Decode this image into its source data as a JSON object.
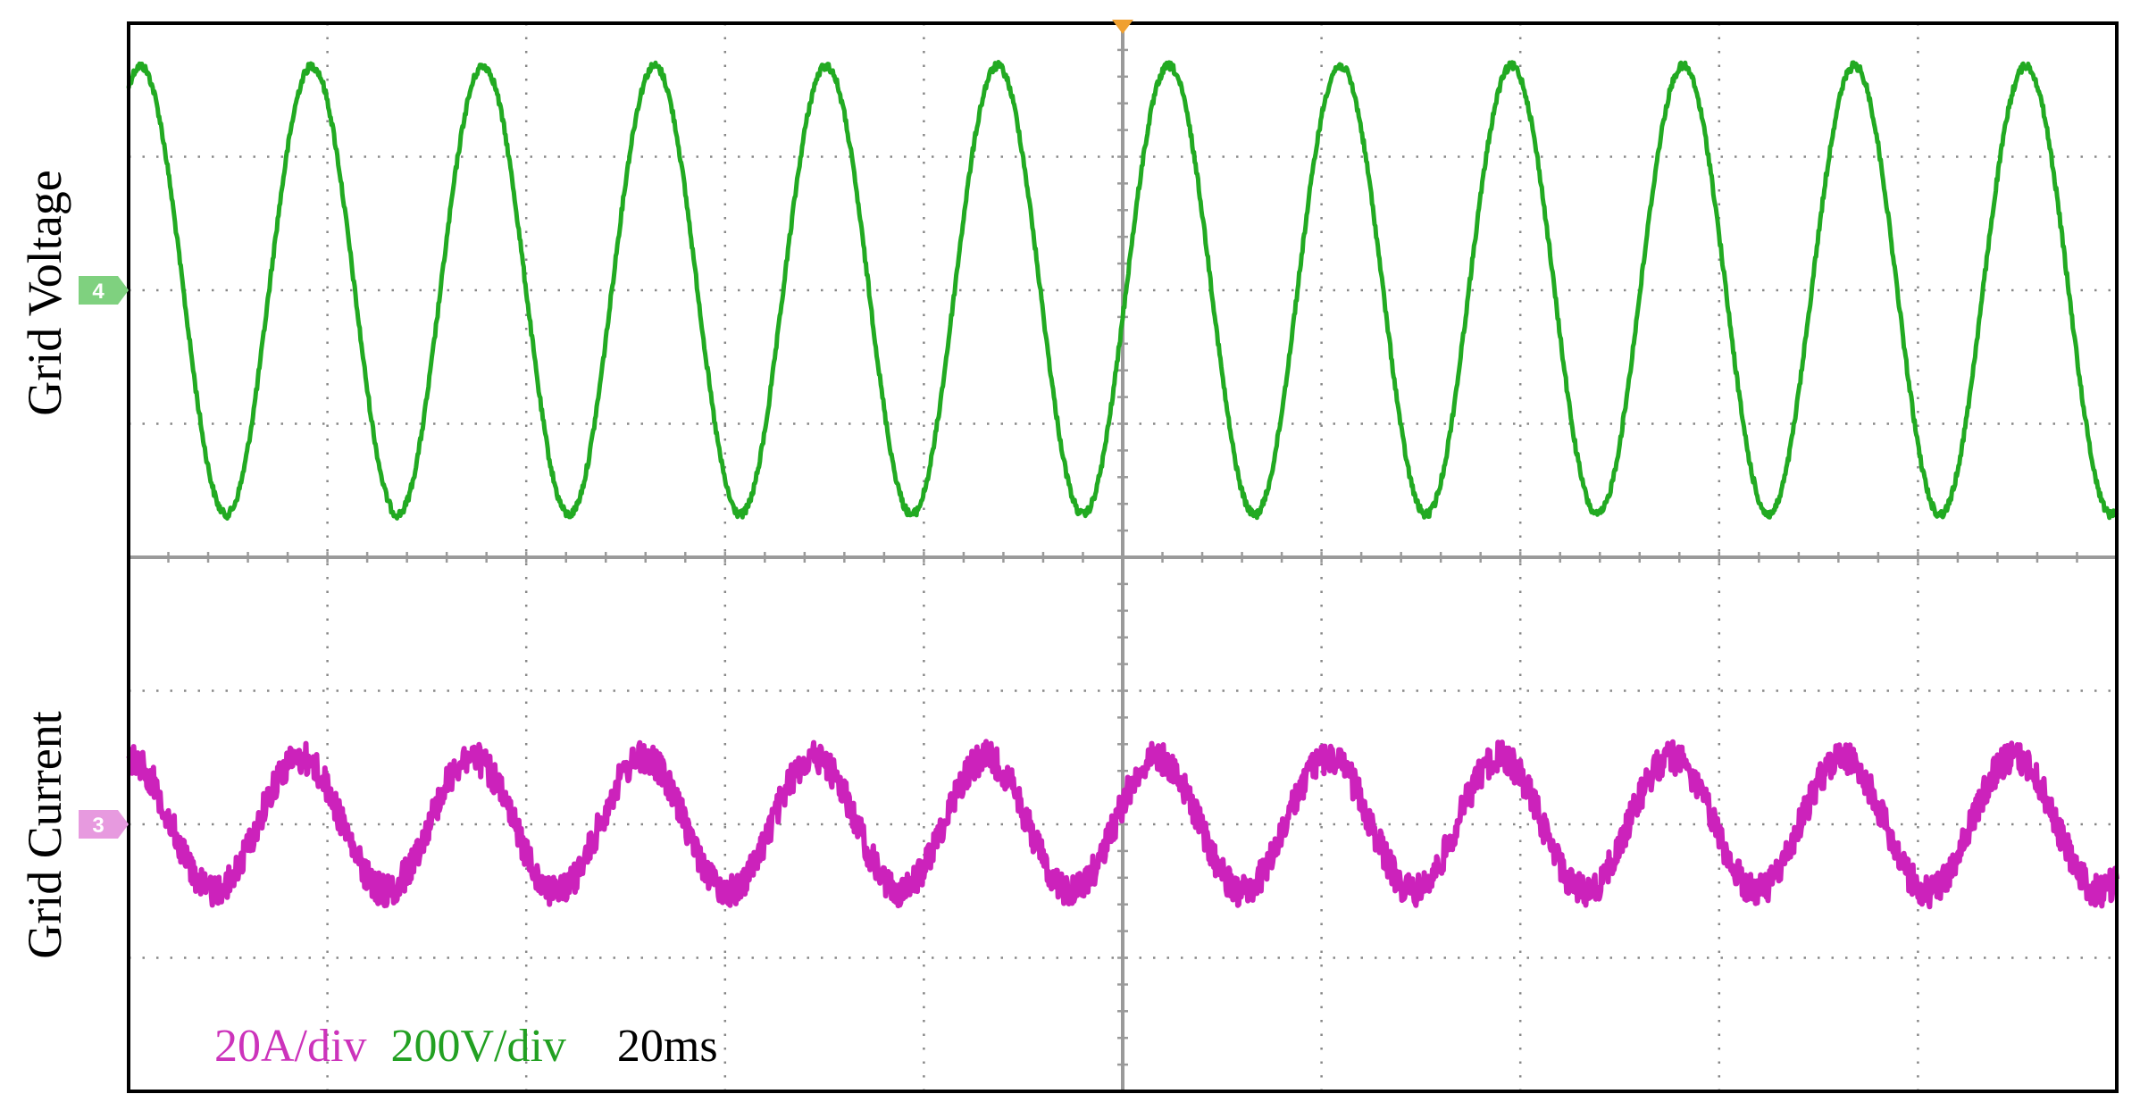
{
  "chart_data": {
    "type": "line",
    "grid": true,
    "x_divisions": 10,
    "y_divisions": 8,
    "panels": [
      {
        "ylabel": "Grid Voltage",
        "channel_marker": "4",
        "series": [
          {
            "name": "Grid Voltage",
            "color": "#22aa22",
            "periods_on_screen": 11.6,
            "peak_divisions": 1.68,
            "phase_deg": -25,
            "noise": 0.03
          }
        ]
      },
      {
        "ylabel": "Grid Current",
        "channel_marker": "3",
        "series": [
          {
            "name": "Grid Current",
            "color": "#cc22bb",
            "periods_on_screen": 11.6,
            "peak_divisions": 0.5,
            "phase_deg": 0,
            "noise": 0.12
          }
        ]
      }
    ],
    "scale": {
      "current": "20A/div",
      "voltage": "200V/div",
      "time": "20ms"
    },
    "colors": {
      "grid": "#888888",
      "frame": "#000000",
      "center_axis": "#9a9a9a",
      "voltage_marker": "#7fd17f",
      "current_marker": "#e79adf",
      "trigger_marker": "#f0a030"
    }
  }
}
